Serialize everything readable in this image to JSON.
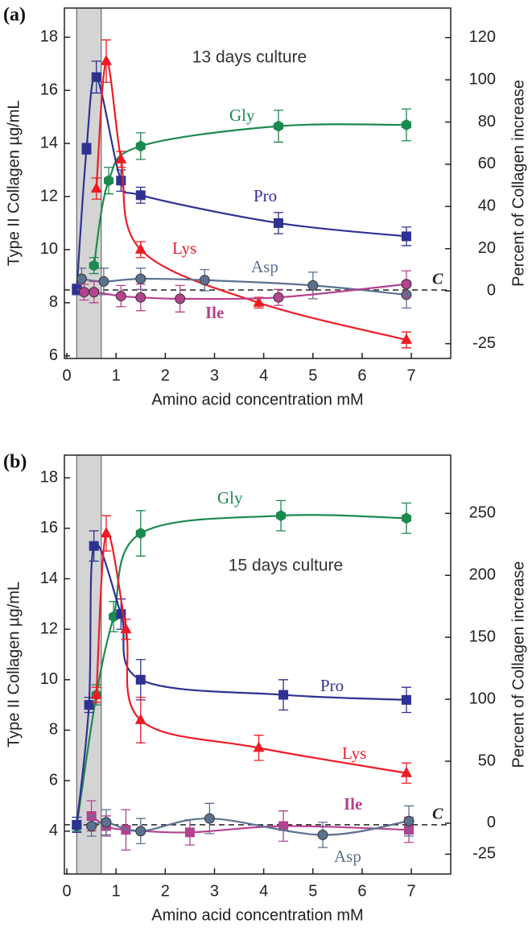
{
  "chart_data": [
    {
      "type": "line",
      "panel_label": "(a)",
      "title": "13 days culture",
      "xlabel": "Amino acid concentration mM",
      "ylabel": "Type II Collagen µg/mL",
      "y2label": "Percent of Collagen increase",
      "xlim": [
        -0.05,
        7.8
      ],
      "xticks": [
        0,
        1,
        2,
        3,
        4,
        5,
        6,
        7
      ],
      "ylim": [
        5.9,
        19.1
      ],
      "yticks": [
        6,
        8,
        10,
        12,
        14,
        16,
        18
      ],
      "y2lim": [
        -32,
        134
      ],
      "y2ticks": [
        -25,
        0,
        20,
        40,
        60,
        80,
        100,
        120
      ],
      "shaded_xrange": [
        0.2,
        0.7
      ],
      "control_line": {
        "value": 8.48,
        "label": "C"
      },
      "series": [
        {
          "name": "Gly",
          "color": "#1b8a4e",
          "marker": "hexagon",
          "x": [
            0.55,
            0.85,
            1.5,
            4.3,
            6.9
          ],
          "values": [
            9.4,
            12.6,
            13.9,
            14.65,
            14.7
          ],
          "errors": [
            0.3,
            0.5,
            0.5,
            0.6,
            0.6
          ]
        },
        {
          "name": "Pro",
          "color": "#2e3192",
          "marker": "square",
          "x": [
            0.2,
            0.4,
            0.6,
            1.1,
            1.5,
            4.3,
            6.9
          ],
          "values": [
            8.5,
            13.8,
            16.5,
            12.6,
            12.05,
            11.0,
            10.5
          ],
          "errors": [
            0.2,
            0.2,
            0.6,
            0.4,
            0.3,
            0.4,
            0.35
          ]
        },
        {
          "name": "Lys",
          "color": "#ed1c24",
          "marker": "triangle",
          "x": [
            0.6,
            0.8,
            1.1,
            1.5,
            3.9,
            6.9
          ],
          "values": [
            12.3,
            17.1,
            13.4,
            10.0,
            8.0,
            6.6
          ],
          "errors": [
            0.4,
            0.8,
            0.3,
            0.3,
            0.2,
            0.3
          ]
        },
        {
          "name": "Asp",
          "color": "#5b7190",
          "marker": "circle",
          "x": [
            0.3,
            0.75,
            1.5,
            2.8,
            5.0,
            6.9
          ],
          "values": [
            8.9,
            8.8,
            8.9,
            8.85,
            8.65,
            8.3
          ],
          "errors": [
            0.4,
            0.5,
            0.4,
            0.4,
            0.5,
            0.5
          ]
        },
        {
          "name": "Ile",
          "color": "#b5428f",
          "marker": "circle",
          "x": [
            0.35,
            0.55,
            1.1,
            1.5,
            2.3,
            4.3,
            6.9
          ],
          "values": [
            8.4,
            8.4,
            8.25,
            8.2,
            8.15,
            8.2,
            8.7
          ],
          "errors": [
            0.3,
            0.4,
            0.4,
            0.5,
            0.5,
            0.3,
            0.5
          ]
        }
      ]
    },
    {
      "type": "line",
      "panel_label": "(b)",
      "title": "15 days culture",
      "xlabel": "Amino acid concentration mM",
      "ylabel": "Type II Collagen µg/mL",
      "y2label": "Percent of Collagen increase",
      "xlim": [
        -0.05,
        7.8
      ],
      "xticks": [
        0,
        1,
        2,
        3,
        4,
        5,
        6,
        7
      ],
      "ylim": [
        2.3,
        18.9
      ],
      "yticks": [
        4,
        6,
        8,
        10,
        12,
        14,
        16,
        18
      ],
      "y2lim": [
        -41,
        297
      ],
      "y2ticks": [
        -25,
        0,
        50,
        100,
        150,
        200,
        250
      ],
      "shaded_xrange": [
        0.2,
        0.7
      ],
      "control_line": {
        "value": 4.25,
        "label": "C"
      },
      "series": [
        {
          "name": "Gly",
          "color": "#1b8a4e",
          "marker": "hexagon",
          "x": [
            0.2,
            0.6,
            0.95,
            1.5,
            4.35,
            6.9
          ],
          "values": [
            4.2,
            9.4,
            12.5,
            15.8,
            16.5,
            16.4
          ],
          "errors": [
            0.2,
            0.4,
            0.6,
            0.9,
            0.6,
            0.6
          ]
        },
        {
          "name": "Pro",
          "color": "#2e3192",
          "marker": "square",
          "x": [
            0.2,
            0.45,
            0.55,
            1.1,
            1.5,
            4.4,
            6.9
          ],
          "values": [
            4.25,
            9.0,
            15.3,
            12.6,
            10.0,
            9.4,
            9.2
          ],
          "errors": [
            0.3,
            0.3,
            0.6,
            0.6,
            0.8,
            0.6,
            0.5
          ]
        },
        {
          "name": "Lys",
          "color": "#ed1c24",
          "marker": "triangle",
          "x": [
            0.6,
            0.8,
            1.2,
            1.5,
            3.9,
            6.9
          ],
          "values": [
            9.4,
            15.8,
            12.0,
            8.4,
            7.3,
            6.3
          ],
          "errors": [
            0.3,
            0.7,
            0.4,
            0.9,
            0.5,
            0.4
          ]
        },
        {
          "name": "Ile",
          "color": "#b5428f",
          "marker": "square",
          "x": [
            0.5,
            0.8,
            1.2,
            2.5,
            4.4,
            6.95
          ],
          "values": [
            4.6,
            4.2,
            4.05,
            3.95,
            4.2,
            4.05
          ],
          "errors": [
            0.6,
            0.4,
            0.8,
            0.5,
            0.6,
            0.5
          ]
        },
        {
          "name": "Asp",
          "color": "#5b7190",
          "marker": "circle",
          "x": [
            0.5,
            0.8,
            1.5,
            2.9,
            5.2,
            6.95
          ],
          "values": [
            4.2,
            4.35,
            4.0,
            4.5,
            3.85,
            4.4
          ],
          "errors": [
            0.4,
            0.5,
            0.5,
            0.6,
            0.5,
            0.6
          ]
        }
      ]
    }
  ]
}
